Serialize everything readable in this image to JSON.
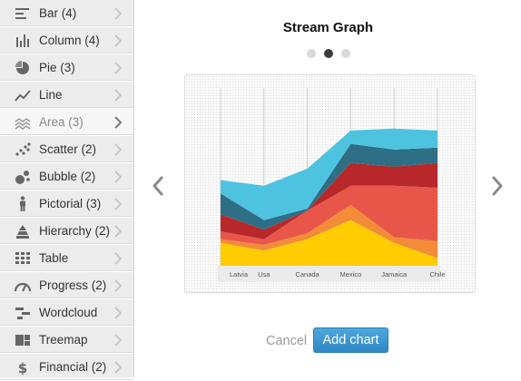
{
  "sidebar": {
    "items": [
      {
        "label": "Bar (4)",
        "icon": "bar-chart-icon"
      },
      {
        "label": "Column (4)",
        "icon": "column-chart-icon"
      },
      {
        "label": "Pie (3)",
        "icon": "pie-chart-icon"
      },
      {
        "label": "Line",
        "icon": "line-chart-icon"
      },
      {
        "label": "Area (3)",
        "icon": "area-chart-icon",
        "active": true
      },
      {
        "label": "Scatter (2)",
        "icon": "scatter-chart-icon"
      },
      {
        "label": "Bubble (2)",
        "icon": "bubble-chart-icon"
      },
      {
        "label": "Pictorial (3)",
        "icon": "pictorial-chart-icon"
      },
      {
        "label": "Hierarchy (2)",
        "icon": "hierarchy-chart-icon"
      },
      {
        "label": "Table",
        "icon": "table-icon"
      },
      {
        "label": "Progress (2)",
        "icon": "progress-gauge-icon"
      },
      {
        "label": "Wordcloud",
        "icon": "wordcloud-icon"
      },
      {
        "label": "Treemap",
        "icon": "treemap-icon"
      },
      {
        "label": "Financial (2)",
        "icon": "dollar-icon"
      }
    ]
  },
  "main": {
    "title": "Stream Graph",
    "pager": {
      "count": 3,
      "active": 1
    },
    "cancel_label": "Cancel",
    "add_label": "Add chart"
  },
  "colors": {
    "accent": "#2f88c4",
    "series": [
      "#ffcc00",
      "#f28c38",
      "#e8564a",
      "#b8282a",
      "#2e6f86",
      "#4ec3e0"
    ]
  },
  "chart_data": {
    "type": "area",
    "categories": [
      "Latvia",
      "Usa",
      "Canada",
      "Mexico",
      "Jamaica",
      "Chile"
    ],
    "series": [
      {
        "values": [
          12,
          8,
          14,
          24,
          12,
          4
        ]
      },
      {
        "values": [
          2,
          3,
          3,
          8,
          3,
          9
        ]
      },
      {
        "values": [
          4,
          3,
          12,
          10,
          27,
          28
        ]
      },
      {
        "values": [
          9,
          5,
          0,
          12,
          10,
          13
        ]
      },
      {
        "values": [
          11,
          5,
          1,
          10,
          9,
          8
        ]
      },
      {
        "values": [
          7,
          18,
          21,
          7,
          11,
          9
        ]
      }
    ],
    "ylim": [
      0,
      100
    ]
  }
}
